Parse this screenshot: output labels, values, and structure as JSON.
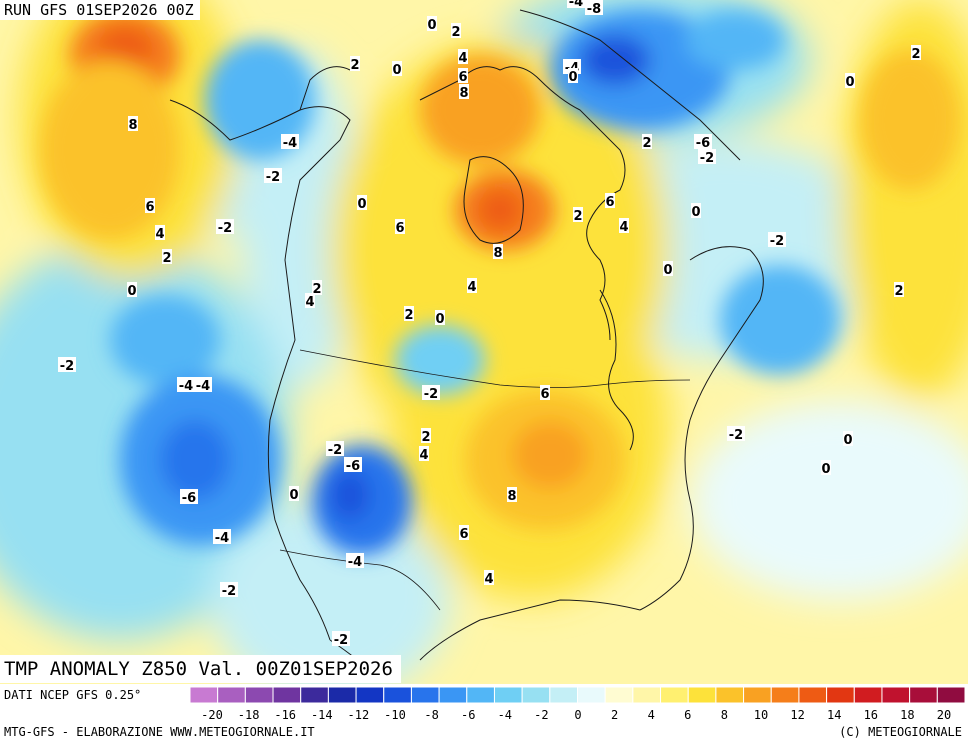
{
  "header": {
    "run_title": "RUN GFS 01SEP2026 00Z"
  },
  "caption": {
    "text": "TMP ANOMALY Z850 Val. 00Z01SEP2026"
  },
  "footer": {
    "data_source": "DATI NCEP GFS 0.25°",
    "credit_left": "MTG-GFS - ELABORAZIONE WWW.METEOGIORNALE.IT",
    "credit_right": "(C) METEOGIORNALE"
  },
  "legend": {
    "colors": [
      "#c87ad2",
      "#a95fc0",
      "#8c49b0",
      "#6f35a0",
      "#3c2a9c",
      "#1b2aa8",
      "#1336c4",
      "#1a52dc",
      "#2874ec",
      "#3a96f4",
      "#52b6f6",
      "#6fcff4",
      "#97e0f2",
      "#c4eff6",
      "#e9fafc",
      "#fffcd2",
      "#fff6a8",
      "#fff070",
      "#fde23a",
      "#fbc22a",
      "#f9a122",
      "#f57e1a",
      "#ee5b14",
      "#e23712",
      "#d11c20",
      "#c0122e",
      "#a80e3a",
      "#900c40"
    ],
    "ticks": [
      "-20",
      "-18",
      "-16",
      "-14",
      "-12",
      "-10",
      "-8",
      "-6",
      "-4",
      "-2",
      "0",
      "2",
      "4",
      "6",
      "8",
      "10",
      "12",
      "14",
      "16",
      "18",
      "20"
    ]
  },
  "map_labels": [
    "8",
    "6",
    "4",
    "2",
    "0",
    "-2",
    "-2",
    "-4",
    "2",
    "0",
    "0",
    "2",
    "4",
    "6",
    "8",
    "-4",
    "-8",
    "-4",
    "0",
    "2",
    "0",
    "2",
    "-6",
    "-2",
    "6",
    "4",
    "2",
    "0",
    "-2",
    "0",
    "2",
    "2",
    "4",
    "0",
    "2",
    "-2",
    "-4",
    "-4",
    "-2",
    "-6",
    "-4",
    "-2",
    "0",
    "-2",
    "-6",
    "0",
    "-4",
    "-2",
    "2",
    "4",
    "8",
    "6",
    "4",
    "6",
    "-2",
    "0",
    "0",
    "8",
    "4",
    "6",
    "2",
    "0"
  ],
  "colors": {
    "background_warm": "#fffcd2",
    "background_cold": "#c4eff6"
  }
}
